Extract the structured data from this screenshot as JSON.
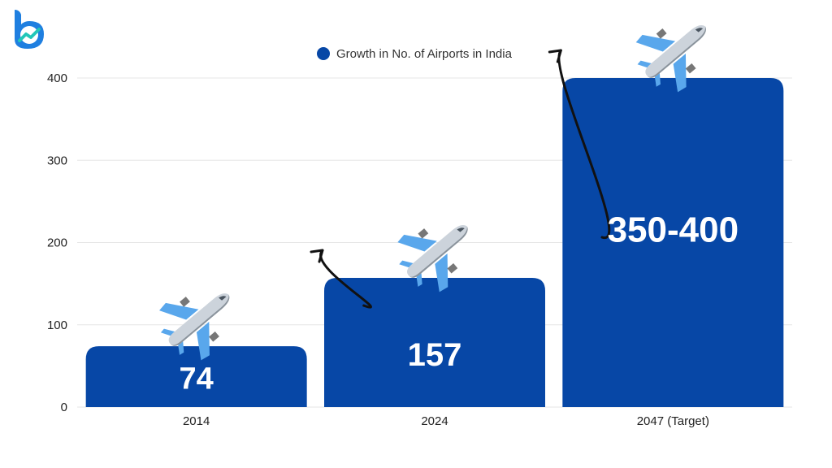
{
  "brand": {
    "logo_icon": "brand-logo-icon",
    "logo_color": "#1f7fe0",
    "logo_accent": "#22c7b8"
  },
  "chart_data": {
    "type": "bar",
    "categories": [
      "2014",
      "2024",
      "2047 (Target)"
    ],
    "series": [
      {
        "name": "Growth in No. of Airports in India",
        "values": [
          74,
          157,
          400
        ]
      }
    ],
    "data_labels": [
      "74",
      "157",
      "350-400"
    ],
    "ylim": [
      0,
      400
    ],
    "yticks": [
      0,
      100,
      200,
      300,
      400
    ],
    "grid": true,
    "legend_position": "top-center",
    "bar_color": "#0747a6",
    "decorations": [
      "airplane-icon",
      "curved-arrow-icon"
    ]
  }
}
